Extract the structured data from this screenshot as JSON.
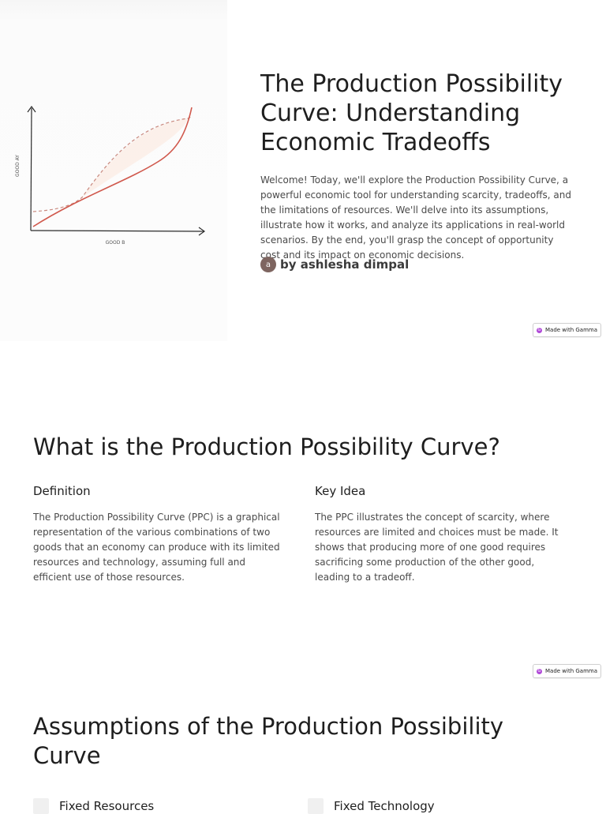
{
  "slide1": {
    "title": "The Production Possibility Curve: Understanding Economic Tradeoffs",
    "intro": "Welcome! Today, we'll explore the Production Possibility Curve, a powerful economic tool for understanding scarcity, tradeoffs, and the limitations of resources. We'll delve into its assumptions, illustrate how it works, and analyze its applications in real-world scenarios. By the end, you'll grasp the concept of opportunity cost and its impact on economic decisions.",
    "author_initial": "a",
    "author": "by ashlesha dimpal",
    "image": {
      "y_axis_label": "GOOD AY",
      "x_axis_label": "GOOD B",
      "curve_color": "#d0584c",
      "dashed_color": "#c9897f"
    }
  },
  "badge": {
    "label": "Made with Gamma",
    "icon": "gamma-logo-icon",
    "icon_color": "#b04ad8"
  },
  "slide2": {
    "title": "What is the Production Possibility Curve?",
    "definition": {
      "heading": "Definition",
      "text": "The Production Possibility Curve (PPC) is a graphical representation of the various combinations of two goods that an economy can produce with its limited resources and technology, assuming full and efficient use of those resources."
    },
    "key_idea": {
      "heading": "Key Idea",
      "text": "The PPC illustrates the concept of scarcity, where resources are limited and choices must be made. It shows that producing more of one good requires sacrificing some production of the other good, leading to a tradeoff."
    }
  },
  "slide3": {
    "title": "Assumptions of the Production Possibility Curve",
    "items": [
      "Fixed Resources",
      "Fixed Technology"
    ]
  }
}
